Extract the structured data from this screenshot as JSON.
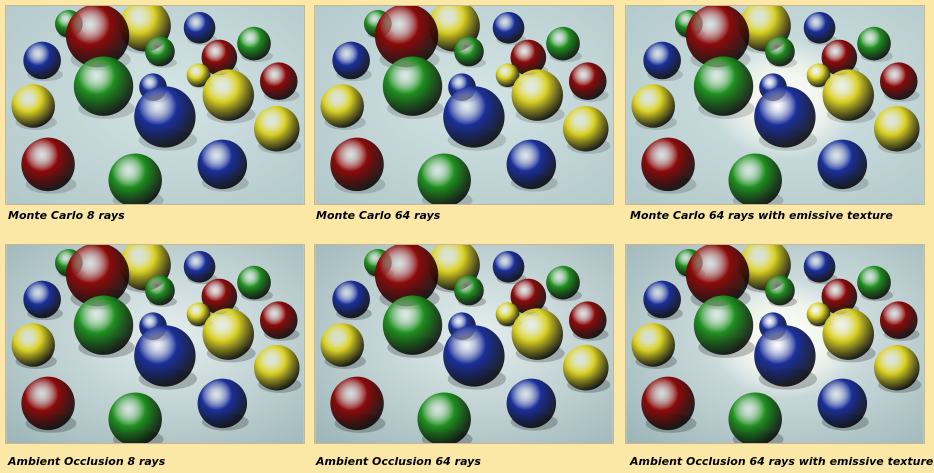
{
  "panels": [
    {
      "caption": "Monte Carlo 8 rays"
    },
    {
      "caption": "Monte Carlo 64 rays"
    },
    {
      "caption": "Monte Carlo 64 rays with emissive texture"
    },
    {
      "caption": "Ambient Occlusion 8 rays"
    },
    {
      "caption": "Ambient Occlusion 64 rays"
    },
    {
      "caption": "Ambient Occlusion 64 rays with emissive texture"
    }
  ],
  "colors": {
    "background": "#fbe8a6",
    "red": "#8b0a0a",
    "green": "#1f8f1f",
    "blue": "#1a2f9a",
    "yellow": "#d8cf22",
    "floor": "#bfd3d6"
  }
}
